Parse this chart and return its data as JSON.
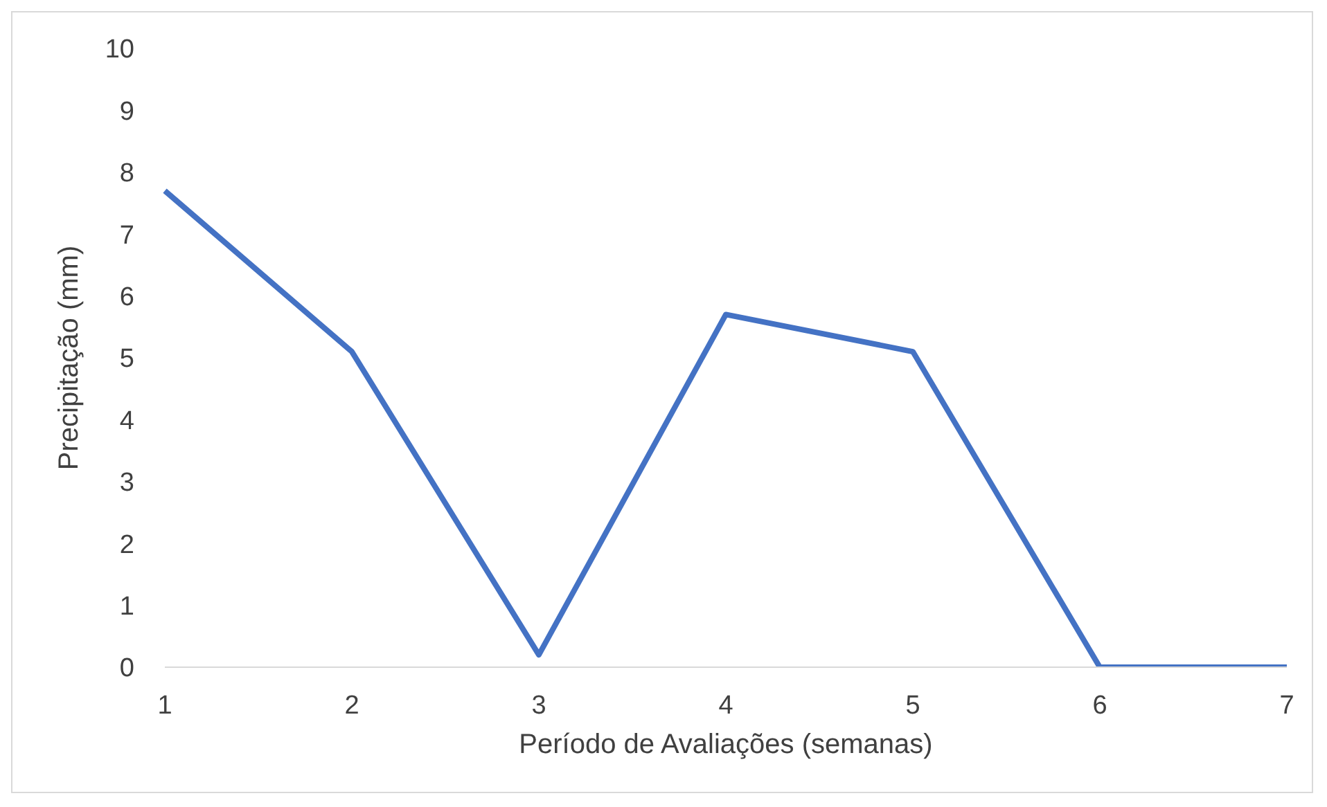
{
  "chart_data": {
    "type": "line",
    "xlabel": "Período de Avaliações (semanas)",
    "ylabel": "Precipitação (mm)",
    "categories": [
      "1",
      "2",
      "3",
      "4",
      "5",
      "6",
      "7"
    ],
    "series": [
      {
        "color": "#4472c4",
        "values": [
          7.7,
          5.1,
          0.2,
          5.7,
          5.1,
          0,
          0
        ]
      }
    ],
    "ylim": [
      0,
      10
    ],
    "yticks": [
      0,
      1,
      2,
      3,
      4,
      5,
      6,
      7,
      8,
      9,
      10
    ],
    "grid": false,
    "legend": false,
    "marker": "none",
    "line_style": "solid"
  }
}
